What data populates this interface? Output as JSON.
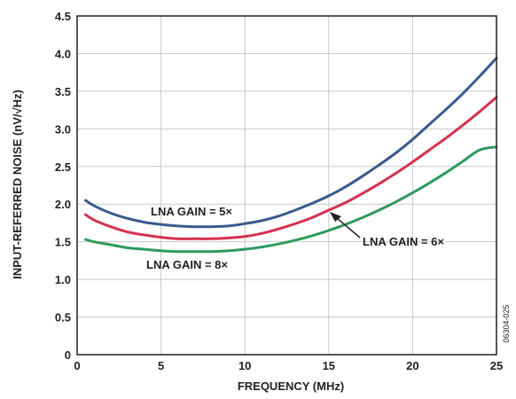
{
  "chart_data": {
    "type": "line",
    "title": "",
    "xlabel": "FREQUENCY (MHz)",
    "ylabel": "INPUT-REFERRED NOISE (nV/√Hz)",
    "xlim": [
      0,
      25
    ],
    "ylim": [
      0,
      4.5
    ],
    "xticks": [
      0,
      5,
      10,
      15,
      20,
      25
    ],
    "xtick_labels": [
      "0",
      "5",
      "10",
      "15",
      "20",
      "25"
    ],
    "yticks": [
      0,
      0.5,
      1.0,
      1.5,
      2.0,
      2.5,
      3.0,
      3.5,
      4.0,
      4.5
    ],
    "ytick_labels": [
      "0",
      "0.5",
      "1.0",
      "1.5",
      "2.0",
      "2.5",
      "3.0",
      "3.5",
      "4.0",
      "4.5"
    ],
    "grid": true,
    "series": [
      {
        "name": "LNA GAIN = 5×",
        "color": "#3a5a8c",
        "x": [
          0.5,
          1,
          2,
          3,
          4,
          5,
          6,
          7,
          8,
          9,
          10,
          11,
          12,
          13,
          14,
          15,
          16,
          17,
          18,
          19,
          20,
          21,
          22,
          23,
          24,
          25
        ],
        "y": [
          2.05,
          1.98,
          1.88,
          1.81,
          1.76,
          1.73,
          1.71,
          1.7,
          1.7,
          1.71,
          1.74,
          1.78,
          1.84,
          1.92,
          2.01,
          2.11,
          2.23,
          2.37,
          2.52,
          2.68,
          2.86,
          3.06,
          3.26,
          3.47,
          3.7,
          3.94
        ]
      },
      {
        "name": "LNA GAIN = 6×",
        "color": "#d5304f",
        "x": [
          0.5,
          1,
          2,
          3,
          4,
          5,
          6,
          7,
          8,
          9,
          10,
          11,
          12,
          13,
          14,
          15,
          16,
          17,
          18,
          19,
          20,
          21,
          22,
          23,
          24,
          25
        ],
        "y": [
          1.86,
          1.79,
          1.7,
          1.63,
          1.59,
          1.56,
          1.54,
          1.54,
          1.54,
          1.55,
          1.57,
          1.61,
          1.67,
          1.74,
          1.82,
          1.92,
          2.02,
          2.14,
          2.27,
          2.41,
          2.56,
          2.72,
          2.88,
          3.05,
          3.23,
          3.42
        ]
      },
      {
        "name": "LNA GAIN = 8×",
        "color": "#2e9a5e",
        "x": [
          0.5,
          1,
          2,
          3,
          4,
          5,
          6,
          7,
          8,
          9,
          10,
          11,
          12,
          13,
          14,
          15,
          16,
          17,
          18,
          19,
          20,
          21,
          22,
          23,
          24,
          25
        ],
        "y": [
          1.53,
          1.5,
          1.46,
          1.42,
          1.4,
          1.38,
          1.37,
          1.37,
          1.37,
          1.38,
          1.4,
          1.43,
          1.47,
          1.52,
          1.58,
          1.65,
          1.73,
          1.82,
          1.92,
          2.03,
          2.15,
          2.28,
          2.42,
          2.57,
          2.72,
          2.76
        ]
      }
    ],
    "annotations": [
      {
        "text": "LNA GAIN = 5×"
      },
      {
        "text": "LNA GAIN = 6×"
      },
      {
        "text": "LNA GAIN = 8×"
      }
    ],
    "figure_code": "06304-025"
  }
}
